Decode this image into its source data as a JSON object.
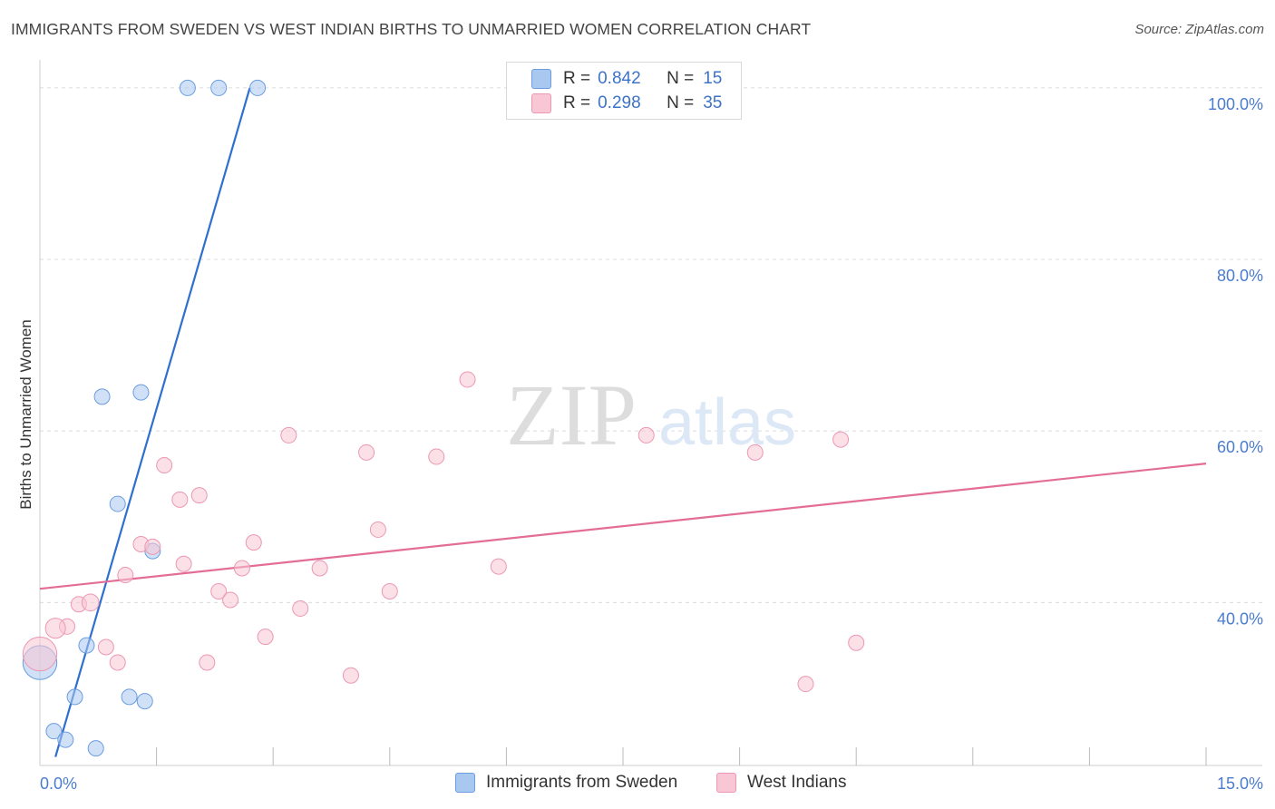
{
  "header": {
    "title": "IMMIGRANTS FROM SWEDEN VS WEST INDIAN BIRTHS TO UNMARRIED WOMEN CORRELATION CHART",
    "source": "Source: ZipAtlas.com"
  },
  "watermark": {
    "zip": "ZIP",
    "atlas": "atlas"
  },
  "legend_top": {
    "rows": [
      {
        "r_label": "R =",
        "r_value": "0.842",
        "n_label": "N =",
        "n_value": "15",
        "color": "#a9c8f0",
        "border": "#6b9de0"
      },
      {
        "r_label": "R =",
        "r_value": "0.298",
        "n_label": "N =",
        "n_value": "35",
        "color": "#f8c6d4",
        "border": "#ec98b3"
      }
    ]
  },
  "legend_bottom": {
    "items": [
      {
        "label": "Immigrants from Sweden",
        "color": "#a9c8f0",
        "border": "#6b9de0"
      },
      {
        "label": "West Indians",
        "color": "#f8c6d4",
        "border": "#ec98b3"
      }
    ]
  },
  "chart_data": {
    "type": "scatter",
    "title": "IMMIGRANTS FROM SWEDEN VS WEST INDIAN BIRTHS TO UNMARRIED WOMEN CORRELATION CHART",
    "xlabel": "",
    "ylabel": "Births to Unmarried Women",
    "xlim": [
      0,
      15
    ],
    "ylim": [
      21,
      102
    ],
    "x_ticks": [
      0,
      15
    ],
    "x_tick_labels": [
      "0.0%",
      "15.0%"
    ],
    "y_ticks": [
      40,
      60,
      80,
      100
    ],
    "y_tick_labels": [
      "40.0%",
      "60.0%",
      "80.0%",
      "100.0%"
    ],
    "grid": true,
    "series": [
      {
        "name": "Immigrants from Sweden",
        "color": "#6b9de0",
        "fill": "#a9c8f0",
        "line_color": "#2f6fcf",
        "points": [
          {
            "x": 1.9,
            "y": 100,
            "s": 1
          },
          {
            "x": 2.3,
            "y": 100,
            "s": 1
          },
          {
            "x": 2.8,
            "y": 100,
            "s": 1
          },
          {
            "x": 0.8,
            "y": 64,
            "s": 1
          },
          {
            "x": 1.3,
            "y": 64.5,
            "s": 1
          },
          {
            "x": 1.0,
            "y": 51.5,
            "s": 1
          },
          {
            "x": 1.45,
            "y": 46,
            "s": 1
          },
          {
            "x": 0.6,
            "y": 35,
            "s": 1
          },
          {
            "x": 0.0,
            "y": 33,
            "s": 2.2
          },
          {
            "x": 0.45,
            "y": 29,
            "s": 1
          },
          {
            "x": 1.15,
            "y": 29,
            "s": 1
          },
          {
            "x": 1.35,
            "y": 28.5,
            "s": 1
          },
          {
            "x": 0.18,
            "y": 25,
            "s": 1
          },
          {
            "x": 0.33,
            "y": 24,
            "s": 1
          },
          {
            "x": 0.72,
            "y": 23,
            "s": 1
          }
        ],
        "trend": {
          "x0": 0.2,
          "y0": 22,
          "x1": 2.7,
          "y1": 100
        }
      },
      {
        "name": "West Indians",
        "color": "#ec98b3",
        "fill": "#f8c6d4",
        "line_color": "#e36d97",
        "points": [
          {
            "x": 5.5,
            "y": 66,
            "s": 1
          },
          {
            "x": 3.2,
            "y": 59.5,
            "s": 1
          },
          {
            "x": 7.8,
            "y": 59.5,
            "s": 1
          },
          {
            "x": 10.3,
            "y": 59,
            "s": 1
          },
          {
            "x": 4.2,
            "y": 57.5,
            "s": 1
          },
          {
            "x": 5.1,
            "y": 57,
            "s": 1
          },
          {
            "x": 9.2,
            "y": 57.5,
            "s": 1
          },
          {
            "x": 1.6,
            "y": 56,
            "s": 1
          },
          {
            "x": 2.05,
            "y": 52.5,
            "s": 1
          },
          {
            "x": 1.8,
            "y": 52,
            "s": 1
          },
          {
            "x": 4.35,
            "y": 48.5,
            "s": 1
          },
          {
            "x": 2.75,
            "y": 47,
            "s": 1
          },
          {
            "x": 1.3,
            "y": 46.8,
            "s": 1
          },
          {
            "x": 1.45,
            "y": 46.5,
            "s": 1
          },
          {
            "x": 1.85,
            "y": 44.5,
            "s": 1
          },
          {
            "x": 2.6,
            "y": 44,
            "s": 1
          },
          {
            "x": 3.6,
            "y": 44,
            "s": 1
          },
          {
            "x": 5.9,
            "y": 44.2,
            "s": 1
          },
          {
            "x": 1.1,
            "y": 43.2,
            "s": 1
          },
          {
            "x": 2.3,
            "y": 41.3,
            "s": 1
          },
          {
            "x": 4.5,
            "y": 41.3,
            "s": 1
          },
          {
            "x": 2.45,
            "y": 40.3,
            "s": 1
          },
          {
            "x": 0.5,
            "y": 39.8,
            "s": 1
          },
          {
            "x": 0.65,
            "y": 40,
            "s": 1.1
          },
          {
            "x": 3.35,
            "y": 39.3,
            "s": 1
          },
          {
            "x": 0.35,
            "y": 37.2,
            "s": 1
          },
          {
            "x": 0.2,
            "y": 37,
            "s": 1.3
          },
          {
            "x": 2.9,
            "y": 36,
            "s": 1
          },
          {
            "x": 0.85,
            "y": 34.8,
            "s": 1
          },
          {
            "x": 1.0,
            "y": 33,
            "s": 1
          },
          {
            "x": 10.5,
            "y": 35.3,
            "s": 1
          },
          {
            "x": 0.0,
            "y": 34,
            "s": 2.2
          },
          {
            "x": 2.15,
            "y": 33,
            "s": 1
          },
          {
            "x": 4.0,
            "y": 31.5,
            "s": 1
          },
          {
            "x": 9.85,
            "y": 30.5,
            "s": 1
          }
        ],
        "trend": {
          "x0": 0,
          "y0": 41.6,
          "x1": 15,
          "y1": 56.2
        }
      }
    ]
  }
}
